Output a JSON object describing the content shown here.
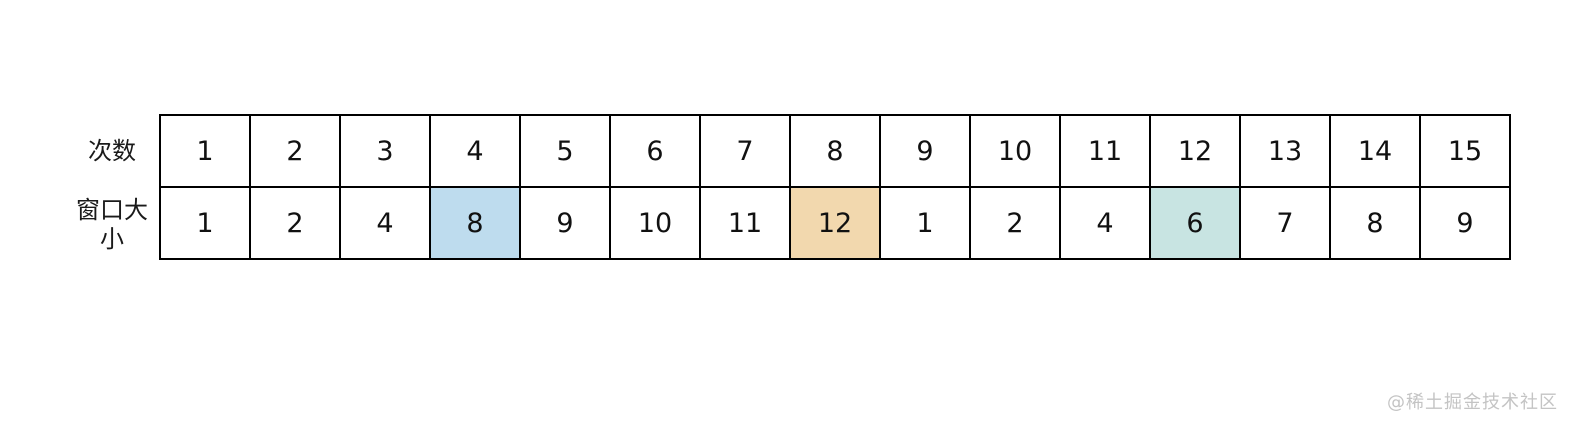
{
  "diagram": {
    "rows": [
      {
        "label": "次数",
        "values": [
          "1",
          "2",
          "3",
          "4",
          "5",
          "6",
          "7",
          "8",
          "9",
          "10",
          "11",
          "12",
          "13",
          "14",
          "15"
        ]
      },
      {
        "label": "窗口大小",
        "values": [
          "1",
          "2",
          "4",
          "8",
          "9",
          "10",
          "11",
          "12",
          "1",
          "2",
          "4",
          "6",
          "7",
          "8",
          "9"
        ]
      }
    ],
    "highlights": [
      {
        "row": 1,
        "col": 3,
        "value": "8",
        "color": "#bedcee"
      },
      {
        "row": 1,
        "col": 7,
        "value": "12",
        "color": "#f2d8ae"
      },
      {
        "row": 1,
        "col": 11,
        "value": "6",
        "color": "#c8e4e2"
      }
    ],
    "border_color": "#000000",
    "text_color": "#111111"
  },
  "watermark": {
    "text": "@稀土掘金技术社区",
    "color": "#c4c4c4"
  }
}
